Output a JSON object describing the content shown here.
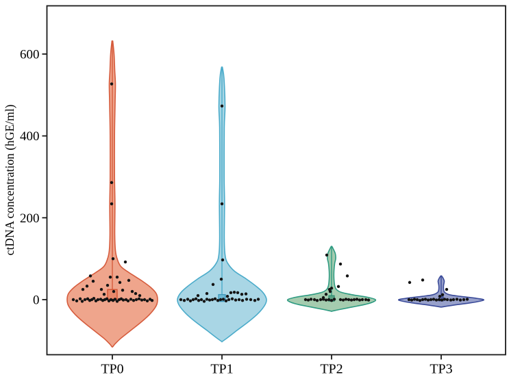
{
  "chart_data": {
    "type": "violin",
    "title": "",
    "xlabel": "",
    "ylabel": "ctDNA concentration (hGE/ml)",
    "categories": [
      "TP0",
      "TP1",
      "TP2",
      "TP3"
    ],
    "y_ticks": [
      0,
      200,
      400,
      600
    ],
    "ylim": [
      -133,
      719
    ],
    "grid": false,
    "legend": "none",
    "colors": {
      "axis": "#1a1a1a",
      "point": "#141414",
      "background": "#ffffff"
    },
    "series": [
      {
        "name": "TP0",
        "fill": "#EFA58C",
        "stroke": "#D65C3D",
        "max_value": 632,
        "min_value": -115,
        "profile": [
          [
            632,
            0.6
          ],
          [
            600,
            2.5
          ],
          [
            560,
            3.5
          ],
          [
            527,
            4.5
          ],
          [
            480,
            4
          ],
          [
            400,
            3.2
          ],
          [
            300,
            3.2
          ],
          [
            234,
            3.8
          ],
          [
            160,
            3.5
          ],
          [
            120,
            4.5
          ],
          [
            100,
            7
          ],
          [
            80,
            13
          ],
          [
            60,
            30
          ],
          [
            45,
            44
          ],
          [
            30,
            56
          ],
          [
            15,
            64
          ],
          [
            0,
            66
          ],
          [
            -15,
            64
          ],
          [
            -35,
            55
          ],
          [
            -55,
            42
          ],
          [
            -75,
            27
          ],
          [
            -95,
            12
          ],
          [
            -108,
            4
          ],
          [
            -115,
            0.6
          ]
        ],
        "marker": {
          "shape": "square",
          "value": 13,
          "half": 7,
          "fill": "#E8896B",
          "stroke": "#D4502E"
        },
        "points": [
          [
            -1,
            527
          ],
          [
            -1,
            286
          ],
          [
            -1,
            234
          ],
          [
            1,
            100
          ],
          [
            19,
            92
          ],
          [
            -43,
            25
          ],
          [
            -37,
            33
          ],
          [
            -32,
            58
          ],
          [
            -28,
            45
          ],
          [
            -16,
            25
          ],
          [
            -12,
            13
          ],
          [
            -7,
            35
          ],
          [
            -3,
            55
          ],
          [
            2,
            20
          ],
          [
            7,
            55
          ],
          [
            11,
            42
          ],
          [
            15,
            23
          ],
          [
            24,
            47
          ],
          [
            29,
            20
          ],
          [
            34,
            15
          ],
          [
            40,
            10
          ],
          [
            -57,
            0
          ],
          [
            -52,
            -3
          ],
          [
            -47,
            2
          ],
          [
            -44,
            -4
          ],
          [
            -40,
            0
          ],
          [
            -36,
            2
          ],
          [
            -33,
            -2
          ],
          [
            -30,
            0
          ],
          [
            -27,
            3
          ],
          [
            -24,
            -3
          ],
          [
            -21,
            0
          ],
          [
            -17,
            1
          ],
          [
            -14,
            -2
          ],
          [
            -11,
            0
          ],
          [
            -8,
            2
          ],
          [
            -5,
            -3
          ],
          [
            -2,
            0
          ],
          [
            1,
            -2
          ],
          [
            4,
            1
          ],
          [
            7,
            -4
          ],
          [
            10,
            0
          ],
          [
            13,
            2
          ],
          [
            16,
            -1
          ],
          [
            20,
            0
          ],
          [
            23,
            -3
          ],
          [
            27,
            1
          ],
          [
            31,
            -2
          ],
          [
            35,
            0
          ],
          [
            39,
            2
          ],
          [
            43,
            -1
          ],
          [
            47,
            0
          ],
          [
            51,
            -3
          ],
          [
            55,
            1
          ],
          [
            58,
            -2
          ]
        ]
      },
      {
        "name": "TP1",
        "fill": "#A9D6E5",
        "stroke": "#4AABCA",
        "max_value": 568,
        "min_value": -102,
        "profile": [
          [
            568,
            0.6
          ],
          [
            540,
            3
          ],
          [
            473,
            4.5
          ],
          [
            420,
            3.4
          ],
          [
            300,
            3.2
          ],
          [
            234,
            3.8
          ],
          [
            150,
            3.4
          ],
          [
            110,
            4.5
          ],
          [
            90,
            8
          ],
          [
            70,
            18
          ],
          [
            50,
            36
          ],
          [
            30,
            52
          ],
          [
            15,
            61
          ],
          [
            0,
            65
          ],
          [
            -15,
            62
          ],
          [
            -35,
            52
          ],
          [
            -55,
            38
          ],
          [
            -75,
            22
          ],
          [
            -92,
            9
          ],
          [
            -102,
            0.6
          ]
        ],
        "marker": {
          "shape": "square",
          "value": 4,
          "half": 5,
          "fill": "#6BB8D4",
          "stroke": "#3D97BA"
        },
        "points": [
          [
            0,
            473
          ],
          [
            0,
            234
          ],
          [
            1,
            97
          ],
          [
            -1,
            50
          ],
          [
            -13,
            37
          ],
          [
            -22,
            15
          ],
          [
            13,
            17
          ],
          [
            18,
            18
          ],
          [
            23,
            17
          ],
          [
            29,
            13
          ],
          [
            35,
            14
          ],
          [
            -35,
            10
          ],
          [
            8,
            8
          ],
          [
            -60,
            0
          ],
          [
            -55,
            -2
          ],
          [
            -50,
            1
          ],
          [
            -46,
            -3
          ],
          [
            -42,
            0
          ],
          [
            -38,
            2
          ],
          [
            -34,
            -2
          ],
          [
            -30,
            0
          ],
          [
            -26,
            -4
          ],
          [
            -22,
            1
          ],
          [
            -18,
            -1
          ],
          [
            -14,
            0
          ],
          [
            -10,
            2
          ],
          [
            -6,
            -2
          ],
          [
            -2,
            0
          ],
          [
            2,
            1
          ],
          [
            6,
            -3
          ],
          [
            10,
            0
          ],
          [
            15,
            2
          ],
          [
            20,
            -1
          ],
          [
            25,
            0
          ],
          [
            30,
            -2
          ],
          [
            36,
            1
          ],
          [
            42,
            0
          ],
          [
            48,
            -2
          ],
          [
            53,
            1
          ]
        ]
      },
      {
        "name": "TP2",
        "fill": "#A5CCAF",
        "stroke": "#2E9B82",
        "max_value": 130,
        "min_value": -28,
        "profile": [
          [
            130,
            0.6
          ],
          [
            122,
            3
          ],
          [
            112,
            5.5
          ],
          [
            100,
            6
          ],
          [
            88,
            4.5
          ],
          [
            70,
            3.5
          ],
          [
            50,
            3.5
          ],
          [
            35,
            4.5
          ],
          [
            25,
            7
          ],
          [
            18,
            14
          ],
          [
            12,
            30
          ],
          [
            6,
            52
          ],
          [
            0,
            64
          ],
          [
            -6,
            60
          ],
          [
            -12,
            48
          ],
          [
            -18,
            30
          ],
          [
            -24,
            12
          ],
          [
            -28,
            0.6
          ]
        ],
        "marker": {
          "shape": "square",
          "value": 3,
          "half": 4,
          "fill": "#5AA183",
          "stroke": "#2F8E70"
        },
        "points": [
          [
            -7,
            109
          ],
          [
            13,
            87
          ],
          [
            23,
            58
          ],
          [
            10,
            32
          ],
          [
            0,
            28
          ],
          [
            -2,
            20
          ],
          [
            -8,
            13
          ],
          [
            -12,
            5
          ],
          [
            -3,
            25
          ],
          [
            -38,
            0
          ],
          [
            -34,
            -1
          ],
          [
            -30,
            1
          ],
          [
            -25,
            0
          ],
          [
            -21,
            -2
          ],
          [
            -16,
            0
          ],
          [
            -12,
            1
          ],
          [
            -8,
            -1
          ],
          [
            -4,
            0
          ],
          [
            0,
            -2
          ],
          [
            4,
            1
          ],
          [
            13,
            0
          ],
          [
            17,
            -1
          ],
          [
            21,
            1
          ],
          [
            25,
            0
          ],
          [
            29,
            -1
          ],
          [
            33,
            0
          ],
          [
            37,
            1
          ],
          [
            41,
            -1
          ],
          [
            45,
            0
          ],
          [
            50,
            0
          ],
          [
            54,
            -1
          ]
        ]
      },
      {
        "name": "TP3",
        "fill": "#98A1CB",
        "stroke": "#3A4A99",
        "max_value": 58,
        "min_value": -18,
        "profile": [
          [
            58,
            0.6
          ],
          [
            52,
            3
          ],
          [
            45,
            4.5
          ],
          [
            35,
            3.5
          ],
          [
            25,
            3.5
          ],
          [
            18,
            5
          ],
          [
            12,
            12
          ],
          [
            8,
            28
          ],
          [
            4,
            48
          ],
          [
            0,
            62
          ],
          [
            -4,
            56
          ],
          [
            -8,
            42
          ],
          [
            -12,
            24
          ],
          [
            -16,
            8
          ],
          [
            -18,
            0.6
          ]
        ],
        "marker": {
          "shape": "square",
          "value": 2,
          "half": 3,
          "fill": "#5A68A8",
          "stroke": "#36468F"
        },
        "points": [
          [
            -46,
            42
          ],
          [
            -27,
            48
          ],
          [
            8,
            25
          ],
          [
            2,
            12
          ],
          [
            -2,
            8
          ],
          [
            -47,
            0
          ],
          [
            -43,
            -1
          ],
          [
            -39,
            1
          ],
          [
            -35,
            0
          ],
          [
            -31,
            -2
          ],
          [
            -27,
            0
          ],
          [
            -23,
            1
          ],
          [
            -19,
            -1
          ],
          [
            -15,
            0
          ],
          [
            -11,
            1
          ],
          [
            -7,
            -1
          ],
          [
            -3,
            0
          ],
          [
            1,
            -1
          ],
          [
            5,
            1
          ],
          [
            9,
            0
          ],
          [
            14,
            -1
          ],
          [
            18,
            0
          ],
          [
            23,
            1
          ],
          [
            28,
            -1
          ],
          [
            33,
            0
          ],
          [
            38,
            1
          ]
        ]
      }
    ]
  }
}
